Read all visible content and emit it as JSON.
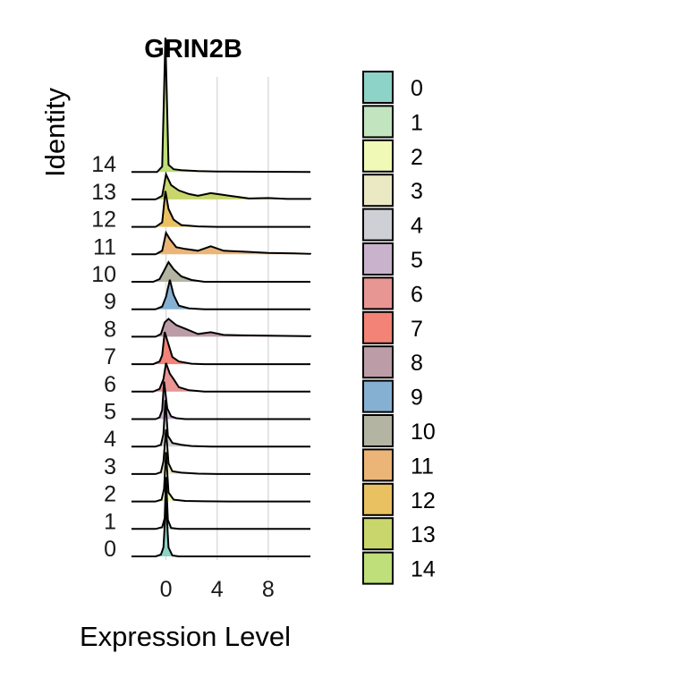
{
  "chart_data": {
    "type": "ridgeline",
    "title": "GRIN2B",
    "xlabel": "Expression Level",
    "ylabel": "Identity",
    "xlim": [
      -2.7,
      11.3
    ],
    "x_ticks": [
      0,
      4,
      8
    ],
    "grid": "vertical",
    "legend_position": "right",
    "categories": [
      "0",
      "1",
      "2",
      "3",
      "4",
      "5",
      "6",
      "7",
      "8",
      "9",
      "10",
      "11",
      "12",
      "13",
      "14"
    ],
    "colors": [
      "#8dd3c7",
      "#c2e5c0",
      "#f1f9b6",
      "#ebe9c4",
      "#cfd0d5",
      "#c9b2cc",
      "#e79694",
      "#f28376",
      "#bc9ca7",
      "#86b0d1",
      "#b3b4a2",
      "#ebb578",
      "#eac161",
      "#c8d66c",
      "#bedf79"
    ],
    "series": [
      {
        "values": [
          [
            -0.8,
            0
          ],
          [
            -0.4,
            2
          ],
          [
            -0.2,
            10
          ],
          [
            0,
            60
          ],
          [
            0.2,
            10
          ],
          [
            0.5,
            1
          ],
          [
            1,
            0
          ]
        ]
      },
      {
        "values": [
          [
            -0.8,
            0
          ],
          [
            -0.3,
            2
          ],
          [
            -0.1,
            12
          ],
          [
            0,
            58
          ],
          [
            0.15,
            10
          ],
          [
            0.4,
            1
          ],
          [
            1,
            0
          ]
        ]
      },
      {
        "values": [
          [
            -0.8,
            0
          ],
          [
            -0.35,
            2
          ],
          [
            -0.15,
            14
          ],
          [
            0,
            55
          ],
          [
            0.2,
            10
          ],
          [
            0.6,
            2
          ],
          [
            1.5,
            0.6
          ],
          [
            3,
            0.2
          ],
          [
            5,
            0
          ]
        ]
      },
      {
        "values": [
          [
            -0.8,
            0
          ],
          [
            -0.4,
            2
          ],
          [
            -0.2,
            14
          ],
          [
            0,
            50
          ],
          [
            0.2,
            12
          ],
          [
            0.5,
            3
          ],
          [
            1.2,
            1.5
          ],
          [
            2.5,
            0.4
          ],
          [
            4,
            0
          ]
        ]
      },
      {
        "values": [
          [
            -0.8,
            0
          ],
          [
            -0.4,
            2
          ],
          [
            -0.2,
            14
          ],
          [
            -0.05,
            52
          ],
          [
            0.15,
            12
          ],
          [
            0.5,
            4
          ],
          [
            1.2,
            2
          ],
          [
            2,
            0.6
          ],
          [
            3.5,
            0
          ]
        ]
      },
      {
        "values": [
          [
            -0.8,
            0
          ],
          [
            -0.5,
            2
          ],
          [
            -0.3,
            10
          ],
          [
            -0.15,
            42
          ],
          [
            0.1,
            12
          ],
          [
            0.4,
            3
          ],
          [
            0.8,
            1
          ],
          [
            1.5,
            0
          ]
        ]
      },
      {
        "values": [
          [
            -1,
            0
          ],
          [
            -0.5,
            3
          ],
          [
            -0.2,
            14
          ],
          [
            0,
            32
          ],
          [
            0.3,
            20
          ],
          [
            0.6,
            14
          ],
          [
            1,
            5
          ],
          [
            1.8,
            1.5
          ],
          [
            3,
            0
          ]
        ]
      },
      {
        "values": [
          [
            -1,
            0
          ],
          [
            -0.5,
            3
          ],
          [
            -0.3,
            10
          ],
          [
            -0.1,
            36
          ],
          [
            0.2,
            22
          ],
          [
            0.5,
            8
          ],
          [
            1,
            3
          ],
          [
            2,
            0.5
          ],
          [
            3,
            0
          ]
        ]
      },
      {
        "values": [
          [
            -0.8,
            0
          ],
          [
            -0.4,
            3
          ],
          [
            -0.1,
            16
          ],
          [
            0.2,
            20
          ],
          [
            0.8,
            13
          ],
          [
            1.5,
            9
          ],
          [
            2.5,
            3
          ],
          [
            3.5,
            5
          ],
          [
            4.5,
            2
          ],
          [
            6,
            1.5
          ],
          [
            8,
            1.2
          ],
          [
            10,
            0.8
          ],
          [
            11.3,
            0.5
          ]
        ]
      },
      {
        "values": [
          [
            -0.8,
            0
          ],
          [
            -0.3,
            3
          ],
          [
            0,
            14
          ],
          [
            0.3,
            33
          ],
          [
            0.6,
            16
          ],
          [
            1,
            4
          ],
          [
            1.8,
            1
          ],
          [
            3,
            0
          ]
        ]
      },
      {
        "values": [
          [
            -1,
            0
          ],
          [
            -0.5,
            3
          ],
          [
            -0.2,
            11
          ],
          [
            0.2,
            22
          ],
          [
            0.6,
            14
          ],
          [
            1.2,
            6
          ],
          [
            2,
            2
          ],
          [
            3,
            0
          ]
        ]
      },
      {
        "values": [
          [
            -0.8,
            0
          ],
          [
            -0.3,
            4
          ],
          [
            0,
            24
          ],
          [
            0.3,
            17
          ],
          [
            0.8,
            8
          ],
          [
            1.5,
            6
          ],
          [
            2.5,
            4
          ],
          [
            3.5,
            9
          ],
          [
            4.5,
            4
          ],
          [
            6,
            3
          ],
          [
            8,
            1.5
          ],
          [
            10,
            1
          ],
          [
            11.3,
            0.5
          ]
        ]
      },
      {
        "values": [
          [
            -0.8,
            0
          ],
          [
            -0.3,
            5
          ],
          [
            -0.05,
            40
          ],
          [
            0.2,
            20
          ],
          [
            0.6,
            8
          ],
          [
            1.2,
            2
          ],
          [
            2.5,
            0.5
          ],
          [
            4,
            0
          ]
        ]
      },
      {
        "values": [
          [
            -0.8,
            0
          ],
          [
            -0.3,
            4
          ],
          [
            0,
            28
          ],
          [
            0.4,
            16
          ],
          [
            1,
            10
          ],
          [
            1.8,
            6
          ],
          [
            2.5,
            4
          ],
          [
            3.5,
            7
          ],
          [
            4.5,
            5
          ],
          [
            5.5,
            3
          ],
          [
            6.5,
            1
          ],
          [
            8,
            1.5
          ],
          [
            9.5,
            0.5
          ],
          [
            11.3,
            0.5
          ]
        ]
      },
      {
        "values": [
          [
            -0.7,
            0
          ],
          [
            -0.3,
            6
          ],
          [
            -0.05,
            150
          ],
          [
            0.2,
            8
          ],
          [
            0.6,
            3
          ],
          [
            1.2,
            2
          ],
          [
            2.5,
            1
          ],
          [
            4,
            0.5
          ],
          [
            6,
            0.3
          ],
          [
            11.3,
            0
          ]
        ]
      }
    ]
  }
}
